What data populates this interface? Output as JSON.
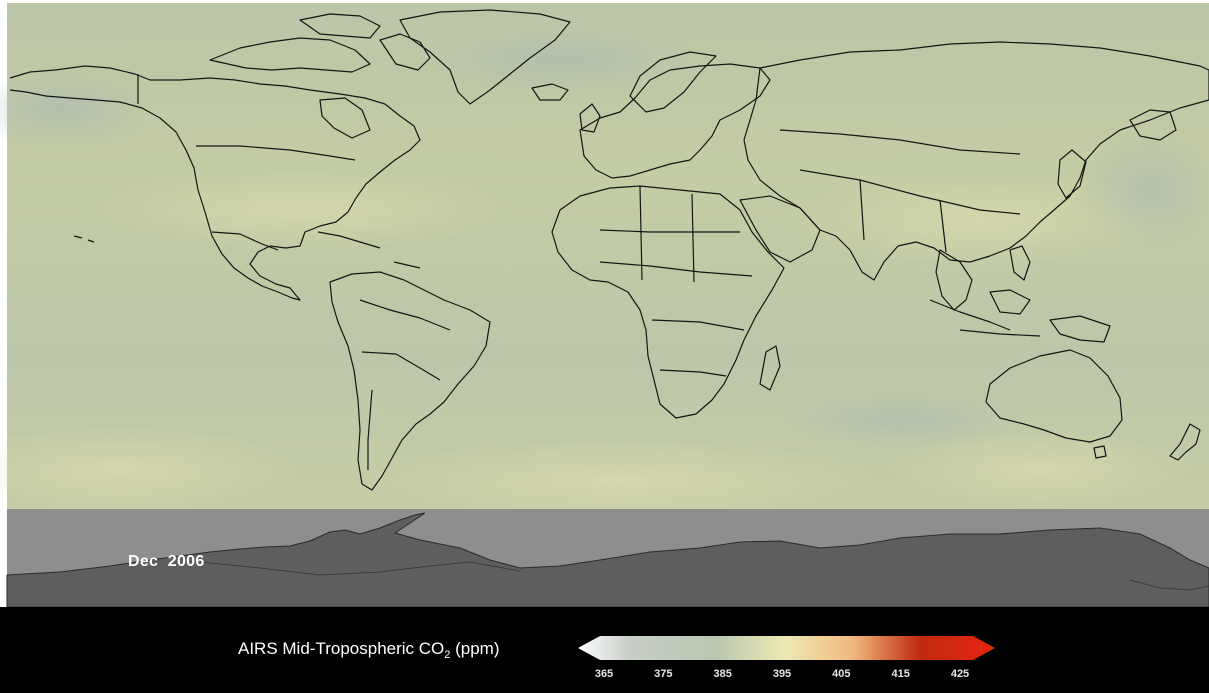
{
  "map": {
    "date_label": "Dec  2006",
    "colors": {
      "field_base": "#bfc9a6",
      "antarctic_sky": "#8e8e8e",
      "antarctic_land": "#5e5e5e",
      "coastline": "#151515",
      "footer_background": "#000000"
    }
  },
  "legend": {
    "title_prefix": "AIRS Mid-Tropospheric CO",
    "title_subscript": "2",
    "title_suffix": " (ppm)",
    "ticks": [
      "365",
      "375",
      "385",
      "395",
      "405",
      "415",
      "425"
    ],
    "color_stops": [
      "#ffffff",
      "#c9cfc8",
      "#b9c8b0",
      "#efe9b4",
      "#f0b87c",
      "#bf2a0e",
      "#e82412"
    ]
  }
}
